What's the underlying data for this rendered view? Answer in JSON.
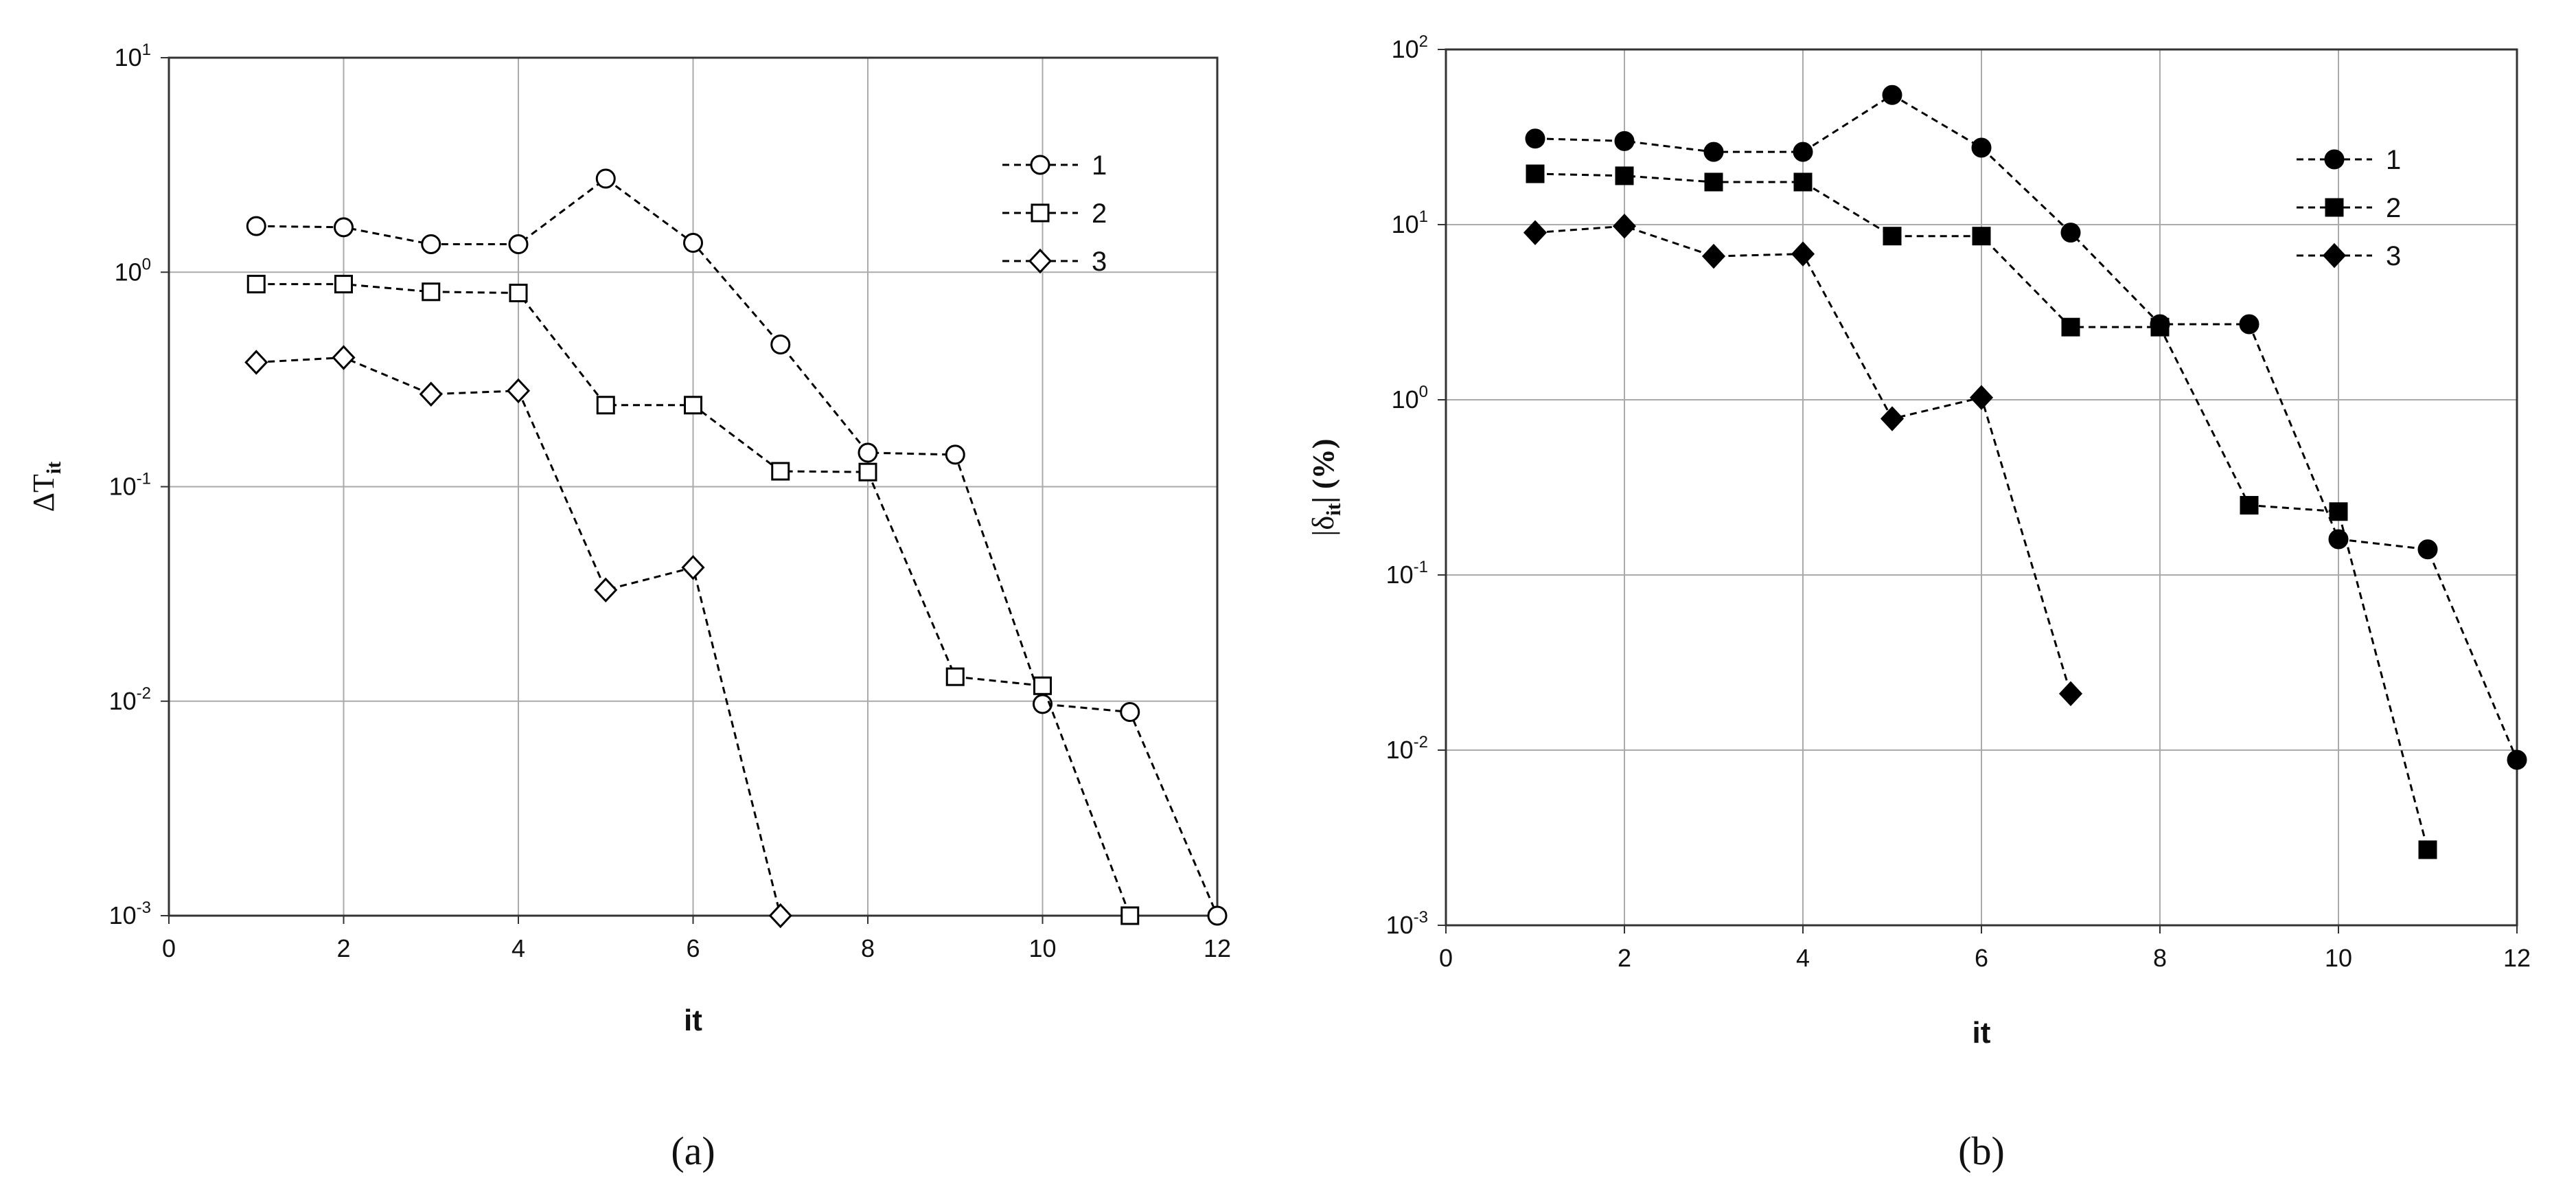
{
  "chart_data": [
    {
      "type": "line",
      "caption": "(a)",
      "xlabel": "it",
      "ylabel": "ΔT",
      "ylabel_sub": "it",
      "ylabel_suffix": null,
      "log_y": true,
      "grid": true,
      "legend": "upper right",
      "xlim": [
        0,
        12
      ],
      "xticks": [
        0,
        2,
        4,
        6,
        8,
        10,
        12
      ],
      "ylim": [
        0.001,
        10
      ],
      "yticks": [
        {
          "value": 0.001,
          "label": "10",
          "exponent": "-3"
        },
        {
          "value": 0.01,
          "label": "10",
          "exponent": "-2"
        },
        {
          "value": 0.1,
          "label": "10",
          "exponent": "-1"
        },
        {
          "value": 1,
          "label": "10",
          "exponent": "0"
        },
        {
          "value": 10,
          "label": "10",
          "exponent": "1"
        }
      ],
      "x": [
        1,
        2,
        3,
        4,
        5,
        6,
        7,
        8,
        9,
        10,
        11,
        12
      ],
      "series": [
        {
          "name": "1",
          "color": "#000000",
          "marker": "circle",
          "filled": false,
          "values": [
            1.64,
            1.62,
            1.35,
            1.35,
            2.73,
            1.37,
            0.46,
            0.144,
            0.141,
            0.0097,
            0.0089,
            0.001
          ]
        },
        {
          "name": "2",
          "color": "#000000",
          "marker": "square",
          "filled": false,
          "values": [
            0.88,
            0.88,
            0.81,
            0.8,
            0.24,
            0.24,
            0.118,
            0.117,
            0.013,
            0.0118,
            0.001,
            null
          ]
        },
        {
          "name": "3",
          "color": "#000000",
          "marker": "diamond",
          "filled": false,
          "values": [
            0.38,
            0.4,
            0.27,
            0.28,
            0.033,
            0.042,
            0.001,
            null,
            null,
            null,
            null,
            null
          ]
        }
      ]
    },
    {
      "type": "line",
      "caption": "(b)",
      "xlabel": "it",
      "ylabel": "|δ",
      "ylabel_sub": "it",
      "ylabel_suffix": "| (%)",
      "log_y": true,
      "grid": true,
      "legend": "upper right",
      "xlim": [
        0,
        12
      ],
      "xticks": [
        0,
        2,
        4,
        6,
        8,
        10,
        12
      ],
      "ylim": [
        0.001,
        100
      ],
      "yticks": [
        {
          "value": 0.001,
          "label": "10",
          "exponent": "-3"
        },
        {
          "value": 0.01,
          "label": "10",
          "exponent": "-2"
        },
        {
          "value": 0.1,
          "label": "10",
          "exponent": "-1"
        },
        {
          "value": 1,
          "label": "10",
          "exponent": "0"
        },
        {
          "value": 10,
          "label": "10",
          "exponent": "1"
        },
        {
          "value": 100,
          "label": "10",
          "exponent": "2"
        }
      ],
      "x": [
        1,
        2,
        3,
        4,
        5,
        6,
        7,
        8,
        9,
        10,
        11,
        12
      ],
      "series": [
        {
          "name": "1",
          "color": "#000000",
          "marker": "circle",
          "filled": true,
          "values": [
            31,
            30,
            26,
            26,
            55,
            27.5,
            9,
            2.7,
            2.7,
            0.16,
            0.14,
            0.0088
          ]
        },
        {
          "name": "2",
          "color": "#000000",
          "marker": "square",
          "filled": true,
          "values": [
            19.5,
            19,
            17.5,
            17.5,
            8.6,
            8.6,
            2.6,
            2.6,
            0.25,
            0.23,
            0.0027,
            null
          ]
        },
        {
          "name": "3",
          "color": "#000000",
          "marker": "diamond",
          "filled": true,
          "values": [
            9,
            9.8,
            6.6,
            6.8,
            0.78,
            1.03,
            0.021,
            null,
            null,
            null,
            null,
            null
          ]
        }
      ]
    }
  ]
}
